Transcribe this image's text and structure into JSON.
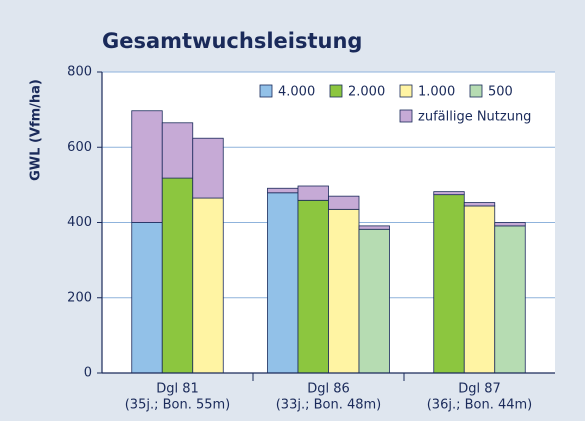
{
  "chart_data": {
    "type": "bar",
    "title": "Gesamtwuchsleistung",
    "y_label": "GWL (Vfm/ha)",
    "categories": [
      [
        "Dgl 81",
        "(35j.; Bon. 55m)"
      ],
      [
        "Dgl 86",
        "(33j.; Bon. 48m)"
      ],
      [
        "Dgl 87",
        "(36j.; Bon. 44m)"
      ]
    ],
    "groups": [
      {
        "name": "4.000",
        "color": "#92c1e8",
        "values": [
          400,
          479,
          null
        ],
        "extra": [
          297,
          12,
          null
        ]
      },
      {
        "name": "2.000",
        "color": "#8cc63f",
        "values": [
          518,
          459,
          474
        ],
        "extra": [
          147,
          38,
          8
        ]
      },
      {
        "name": "1.000",
        "color": "#fff4a3",
        "values": [
          465,
          435,
          444
        ],
        "extra": [
          159,
          35,
          9
        ]
      },
      {
        "name": "500",
        "color": "#b6dcb2",
        "values": [
          null,
          382,
          391
        ],
        "extra": [
          null,
          9,
          9
        ]
      }
    ],
    "extra_name": "zufällige Nutzung",
    "extra_color": "#c6aad6",
    "ylim": [
      0,
      800
    ],
    "yticks": [
      0,
      200,
      400,
      600,
      800
    ],
    "grid": true
  }
}
